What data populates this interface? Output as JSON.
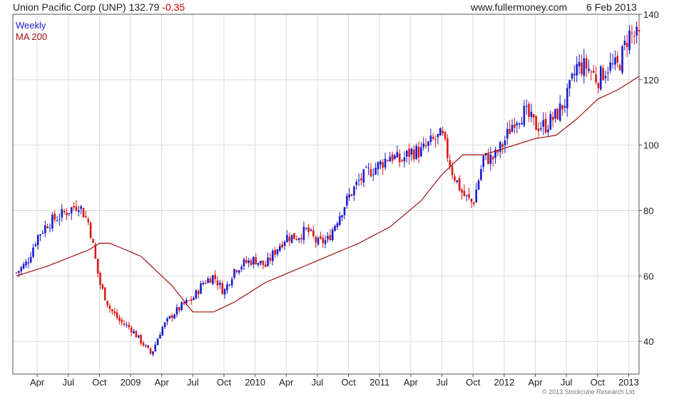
{
  "header": {
    "title_main": "Union Pacific Corp (UNP) 132.79",
    "title_change": "-0.35",
    "site": "www.fullermoney.com",
    "date": "6 Feb 2013"
  },
  "legend": {
    "weekly": "Weekly",
    "ma": "MA 200"
  },
  "copyright": "© 2013 Stockcube Research Ltd",
  "colors": {
    "up": "#1a1acc",
    "down": "#d81818",
    "ma": "#a01010",
    "grid": "#dcdcdc",
    "frame": "#555555"
  },
  "chart_data": {
    "type": "line",
    "subtype": "candlestick-weekly",
    "ylim": [
      30,
      140
    ],
    "y_ticks": [
      40,
      60,
      80,
      100,
      120,
      140
    ],
    "x_ticks": [
      "Apr",
      "Jul",
      "Oct",
      "2009",
      "Apr",
      "Jul",
      "Oct",
      "2010",
      "Apr",
      "Jul",
      "Oct",
      "2011",
      "Apr",
      "Jul",
      "Oct",
      "2012",
      "Apr",
      "Jul",
      "Oct",
      "2013"
    ],
    "x_start": "2008-02-04",
    "grid": true,
    "series": [
      {
        "name": "Weekly",
        "unit": "USD price, weekly close",
        "x": [
          "2008-02",
          "2008-03",
          "2008-04",
          "2008-05",
          "2008-06",
          "2008-07",
          "2008-08",
          "2008-09",
          "2008-10",
          "2008-11",
          "2008-12",
          "2009-01",
          "2009-02",
          "2009-03",
          "2009-04",
          "2009-05",
          "2009-06",
          "2009-07",
          "2009-08",
          "2009-09",
          "2009-10",
          "2009-11",
          "2009-12",
          "2010-01",
          "2010-02",
          "2010-03",
          "2010-04",
          "2010-05",
          "2010-06",
          "2010-07",
          "2010-08",
          "2010-09",
          "2010-10",
          "2010-11",
          "2010-12",
          "2011-01",
          "2011-02",
          "2011-03",
          "2011-04",
          "2011-05",
          "2011-06",
          "2011-07",
          "2011-08",
          "2011-09",
          "2011-10",
          "2011-11",
          "2011-12",
          "2012-01",
          "2012-02",
          "2012-03",
          "2012-04",
          "2012-05",
          "2012-06",
          "2012-07",
          "2012-08",
          "2012-09",
          "2012-10",
          "2012-11",
          "2012-12",
          "2013-01",
          "2013-02"
        ],
        "values": [
          61,
          64,
          72,
          76,
          78,
          80,
          82,
          76,
          58,
          50,
          46,
          44,
          40,
          36,
          44,
          48,
          51,
          53,
          58,
          60,
          55,
          62,
          64,
          65,
          63,
          68,
          72,
          72,
          74,
          70,
          71,
          78,
          84,
          89,
          92,
          94,
          97,
          95,
          98,
          98,
          101,
          103,
          92,
          85,
          82,
          96,
          96,
          101,
          108,
          110,
          106,
          106,
          109,
          114,
          124,
          124,
          120,
          124,
          124,
          134,
          132.79
        ]
      },
      {
        "name": "MA 200",
        "unit": "USD price",
        "x": [
          "2008-02",
          "2008-05",
          "2008-09",
          "2008-10",
          "2008-11",
          "2009-02",
          "2009-05",
          "2009-07",
          "2009-09",
          "2009-11",
          "2010-02",
          "2010-05",
          "2010-08",
          "2010-11",
          "2011-02",
          "2011-05",
          "2011-07",
          "2011-09",
          "2011-11",
          "2012-02",
          "2012-04",
          "2012-06",
          "2012-08",
          "2012-10",
          "2012-12",
          "2013-02"
        ],
        "values": [
          60,
          63,
          68,
          70,
          70,
          66,
          57,
          49,
          49,
          52,
          58,
          62,
          66,
          70,
          75,
          83,
          91,
          97,
          97,
          100,
          102,
          103,
          108,
          114,
          117,
          121
        ]
      }
    ]
  }
}
